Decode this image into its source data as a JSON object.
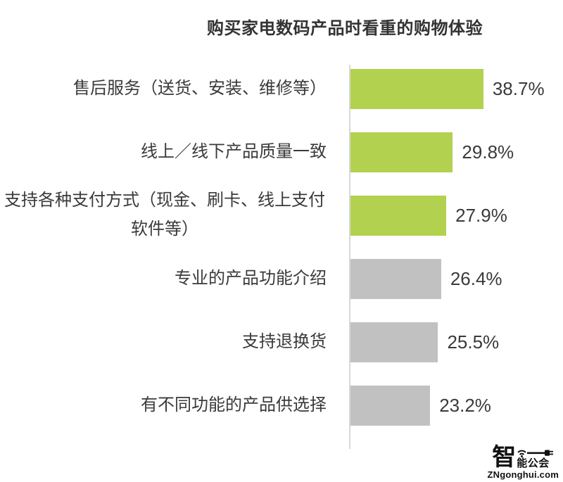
{
  "chart_data": {
    "type": "bar",
    "orientation": "horizontal",
    "title": "购买家电数码产品时看重的购物体验",
    "categories": [
      "售后服务（送货、安装、维修等）",
      "线上／线下产品质量一致",
      "支持各种支付方式（现金、刷卡、线上支付\n软件等）",
      "专业的产品功能介绍",
      "支持退换货",
      "有不同功能的产品供选择"
    ],
    "values": [
      38.7,
      29.8,
      27.9,
      26.4,
      25.5,
      23.2
    ],
    "value_labels": [
      "38.7%",
      "29.8%",
      "27.9%",
      "26.4%",
      "25.5%",
      "23.2%"
    ],
    "colors": [
      "#b2d14f",
      "#b2d14f",
      "#b2d14f",
      "#c1c1c1",
      "#c1c1c1",
      "#c1c1c1"
    ],
    "highlight_color": "#b2d14f",
    "default_color": "#c1c1c1",
    "axis_color": "#d8d8d8",
    "xlim": [
      0,
      40
    ],
    "grid": "off",
    "legend": "none"
  },
  "watermark": {
    "logo_char": "智",
    "logo_text": "能公会",
    "domain": "ZNgonghui.com",
    "color": "#111111"
  }
}
